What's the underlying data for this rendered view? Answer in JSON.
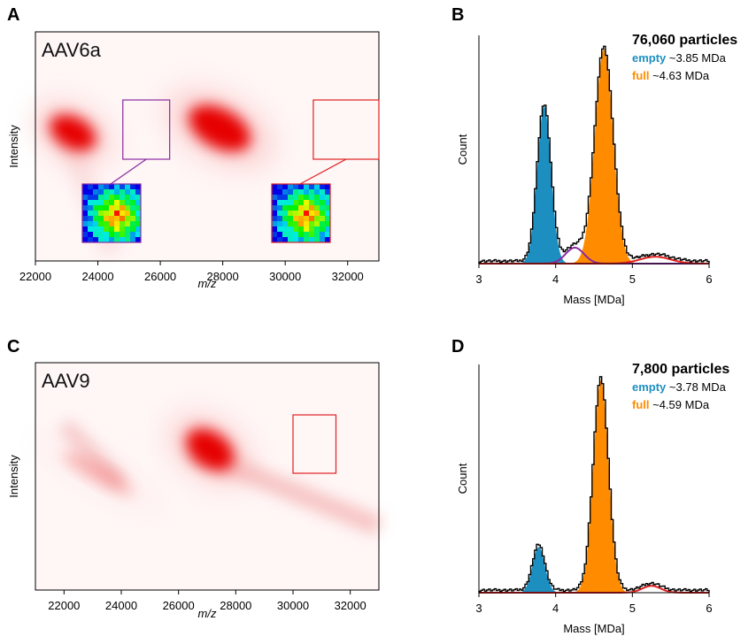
{
  "panels": {
    "A": "A",
    "B": "B",
    "C": "C",
    "D": "D"
  },
  "colors": {
    "empty": "#1c8fc0",
    "full": "#ff8c00",
    "heat": "#e60000",
    "inset_purple": "#8a2a9e",
    "inset_red": "#e02020",
    "black": "#000000"
  },
  "chart_data": [
    {
      "id": "A",
      "type": "heatmap",
      "label": "AAV6a",
      "xlabel": "m/z",
      "ylabel": "Intensity",
      "xlim": [
        22000,
        33000
      ],
      "xticks": [
        22000,
        24000,
        26000,
        28000,
        30000,
        32000
      ],
      "spots": [
        {
          "x": 23200,
          "level": 1.0
        },
        {
          "x": 27900,
          "level": 1.0
        }
      ],
      "insets": [
        {
          "x_range": [
            24800,
            26300
          ],
          "color": "inset_purple"
        },
        {
          "x_range": [
            30900,
            33000
          ],
          "color": "inset_red"
        }
      ]
    },
    {
      "id": "B",
      "type": "area",
      "title": "76,060 particles",
      "legend": [
        {
          "name": "empty",
          "value": "~3.85 MDa",
          "color": "empty"
        },
        {
          "name": "full",
          "value": "~4.63 MDa",
          "color": "full"
        }
      ],
      "xlabel": "Mass [MDa]",
      "ylabel": "Count",
      "xlim": [
        3,
        6
      ],
      "xticks": [
        3,
        4,
        5,
        6
      ],
      "ylim": [
        0,
        1
      ],
      "peaks": [
        {
          "series": "empty",
          "center": 3.85,
          "height": 0.69,
          "width": 0.09
        },
        {
          "series": "full",
          "center": 4.63,
          "height": 0.94,
          "width": 0.12
        },
        {
          "series": "intermediate",
          "center": 4.25,
          "height": 0.07,
          "width": 0.12,
          "color": "inset_purple"
        },
        {
          "series": "high",
          "center": 5.3,
          "height": 0.03,
          "width": 0.2,
          "color": "inset_red"
        }
      ]
    },
    {
      "id": "C",
      "type": "heatmap",
      "label": "AAV9",
      "xlabel": "m/z",
      "ylabel": "Intensity",
      "xlim": [
        21000,
        33000
      ],
      "xticks": [
        22000,
        24000,
        26000,
        28000,
        30000,
        32000
      ],
      "spots": [
        {
          "x": 27100,
          "level": 1.0
        },
        {
          "x": 23200,
          "level": 0.25
        }
      ],
      "insets": [
        {
          "x_range": [
            30000,
            31500
          ],
          "color": "inset_red"
        }
      ]
    },
    {
      "id": "D",
      "type": "area",
      "title": "7,800 particles",
      "legend": [
        {
          "name": "empty",
          "value": "~3.78 MDa",
          "color": "empty"
        },
        {
          "name": "full",
          "value": "~4.59 MDa",
          "color": "full"
        }
      ],
      "xlabel": "Mass [MDa]",
      "ylabel": "Count",
      "xlim": [
        3,
        6
      ],
      "xticks": [
        3,
        4,
        5,
        6
      ],
      "ylim": [
        0,
        1
      ],
      "peaks": [
        {
          "series": "empty",
          "center": 3.78,
          "height": 0.2,
          "width": 0.08
        },
        {
          "series": "full",
          "center": 4.59,
          "height": 0.93,
          "width": 0.1
        },
        {
          "series": "high",
          "center": 5.25,
          "height": 0.03,
          "width": 0.12,
          "color": "inset_red"
        }
      ]
    }
  ]
}
